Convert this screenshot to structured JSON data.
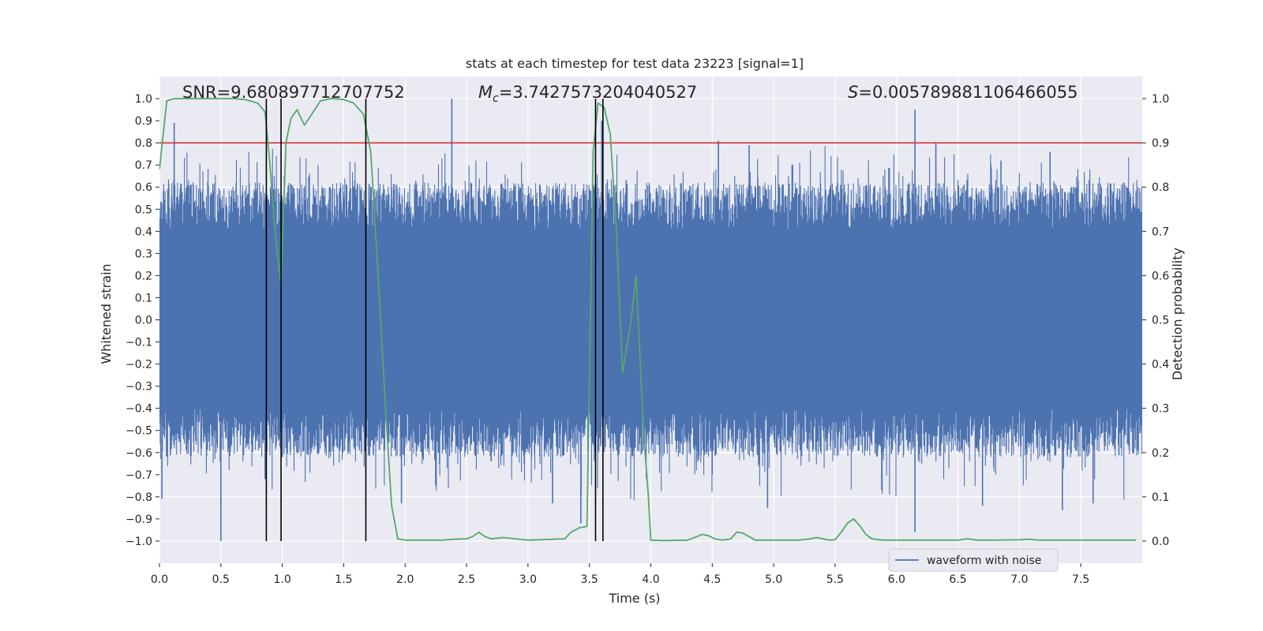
{
  "chart_data": {
    "type": "line",
    "title": "stats at each timestep for test data 23223 [signal=1]",
    "xlabel": "Time (s)",
    "ylabel_left": "Whitened strain",
    "ylabel_right": "Detection probability",
    "xlim": [
      0.0,
      8.0
    ],
    "ylim_left": [
      -1.1,
      1.1
    ],
    "ylim_right": [
      -0.05,
      1.05
    ],
    "grid": true,
    "legend_location": "lower-right",
    "legend": [
      "waveform with noise"
    ],
    "x_ticks": [
      "0.0",
      "0.5",
      "1.0",
      "1.5",
      "2.0",
      "2.5",
      "3.0",
      "3.5",
      "4.0",
      "4.5",
      "5.0",
      "5.5",
      "6.0",
      "6.5",
      "7.0",
      "7.5"
    ],
    "y_ticks_left": [
      "1.0",
      "0.9",
      "0.8",
      "0.7",
      "0.6",
      "0.5",
      "0.4",
      "0.3",
      "0.2",
      "0.1",
      "0.0",
      "−0.1",
      "−0.2",
      "−0.3",
      "−0.4",
      "−0.5",
      "−0.6",
      "−0.7",
      "−0.8",
      "−0.9",
      "−1.0"
    ],
    "y_ticks_right": [
      "1.0",
      "0.9",
      "0.8",
      "0.7",
      "0.6",
      "0.5",
      "0.4",
      "0.3",
      "0.2",
      "0.1",
      "0.0"
    ],
    "annotations": {
      "snr": "SNR=9.680897712707752",
      "mc_symbol": "M",
      "mc_sub": "c",
      "mc_value": "=3.7427573204040527",
      "s_symbol": "S",
      "s_value": "=0.005789881106466055"
    },
    "threshold": {
      "value": 0.9,
      "axis": "right",
      "color": "#d62728"
    },
    "vertical_lines": [
      0.87,
      0.99,
      1.68,
      3.55,
      3.61
    ],
    "series": [
      {
        "name": "waveform with noise",
        "axis": "left",
        "color": "#4c72b0",
        "kind": "noise",
        "band": 0.4,
        "spikes": [
          {
            "x": 0.02,
            "y": -0.81
          },
          {
            "x": 0.12,
            "y": 0.89
          },
          {
            "x": 0.5,
            "y": -1.0
          },
          {
            "x": 0.86,
            "y": -0.72
          },
          {
            "x": 1.0,
            "y": -0.62
          },
          {
            "x": 1.45,
            "y": -0.58
          },
          {
            "x": 1.97,
            "y": -0.83
          },
          {
            "x": 2.38,
            "y": 1.0
          },
          {
            "x": 2.7,
            "y": -0.64
          },
          {
            "x": 3.2,
            "y": -0.83
          },
          {
            "x": 3.43,
            "y": -0.92
          },
          {
            "x": 3.6,
            "y": 0.9
          },
          {
            "x": 4.55,
            "y": 0.81
          },
          {
            "x": 4.8,
            "y": 0.79
          },
          {
            "x": 4.95,
            "y": -0.85
          },
          {
            "x": 5.15,
            "y": 0.7
          },
          {
            "x": 5.88,
            "y": -0.77
          },
          {
            "x": 6.15,
            "y": 0.95
          },
          {
            "x": 6.15,
            "y": -0.96
          },
          {
            "x": 6.32,
            "y": 0.8
          },
          {
            "x": 6.7,
            "y": -0.84
          },
          {
            "x": 6.85,
            "y": 0.72
          },
          {
            "x": 7.25,
            "y": 0.76
          },
          {
            "x": 7.35,
            "y": -0.86
          },
          {
            "x": 7.6,
            "y": -0.83
          }
        ]
      },
      {
        "name": "detection probability",
        "axis": "right",
        "color": "#55a868",
        "x": [
          0.0,
          0.06,
          0.12,
          0.2,
          0.3,
          0.4,
          0.5,
          0.6,
          0.7,
          0.8,
          0.86,
          0.9,
          0.94,
          0.99,
          1.03,
          1.07,
          1.12,
          1.18,
          1.24,
          1.31,
          1.4,
          1.5,
          1.58,
          1.66,
          1.72,
          1.78,
          1.84,
          1.89,
          1.94,
          2.0,
          2.1,
          2.3,
          2.4,
          2.5,
          2.55,
          2.6,
          2.65,
          2.7,
          2.8,
          2.9,
          3.0,
          3.1,
          3.2,
          3.3,
          3.35,
          3.42,
          3.48,
          3.53,
          3.57,
          3.62,
          3.67,
          3.72,
          3.77,
          3.84,
          3.88,
          3.94,
          3.98,
          4.0,
          4.1,
          4.3,
          4.42,
          4.47,
          4.52,
          4.58,
          4.65,
          4.7,
          4.75,
          4.8,
          4.85,
          4.9,
          5.0,
          5.2,
          5.3,
          5.35,
          5.4,
          5.45,
          5.5,
          5.55,
          5.6,
          5.65,
          5.7,
          5.75,
          5.8,
          5.85,
          5.9,
          6.0,
          6.3,
          6.5,
          6.58,
          6.65,
          6.8,
          7.0,
          7.08,
          7.15,
          7.3,
          7.5,
          7.7,
          7.95
        ],
        "y": [
          0.84,
          0.995,
          1.0,
          1.0,
          1.0,
          1.0,
          1.0,
          1.0,
          0.998,
          0.99,
          0.97,
          0.85,
          0.7,
          0.58,
          0.9,
          0.955,
          0.975,
          0.94,
          0.965,
          0.995,
          1.0,
          0.998,
          0.99,
          0.965,
          0.88,
          0.6,
          0.3,
          0.08,
          0.005,
          0.002,
          0.002,
          0.002,
          0.004,
          0.005,
          0.01,
          0.02,
          0.01,
          0.005,
          0.008,
          0.005,
          0.002,
          0.003,
          0.004,
          0.005,
          0.02,
          0.03,
          0.033,
          0.88,
          0.99,
          0.98,
          0.92,
          0.7,
          0.38,
          0.5,
          0.6,
          0.25,
          0.1,
          0.002,
          0.001,
          0.002,
          0.015,
          0.012,
          0.005,
          0.002,
          0.005,
          0.02,
          0.018,
          0.01,
          0.002,
          0.002,
          0.002,
          0.002,
          0.005,
          0.008,
          0.005,
          0.002,
          0.003,
          0.02,
          0.04,
          0.05,
          0.035,
          0.015,
          0.005,
          0.003,
          0.002,
          0.002,
          0.002,
          0.002,
          0.005,
          0.002,
          0.002,
          0.003,
          0.004,
          0.002,
          0.002,
          0.002,
          0.002,
          0.002
        ]
      }
    ]
  }
}
